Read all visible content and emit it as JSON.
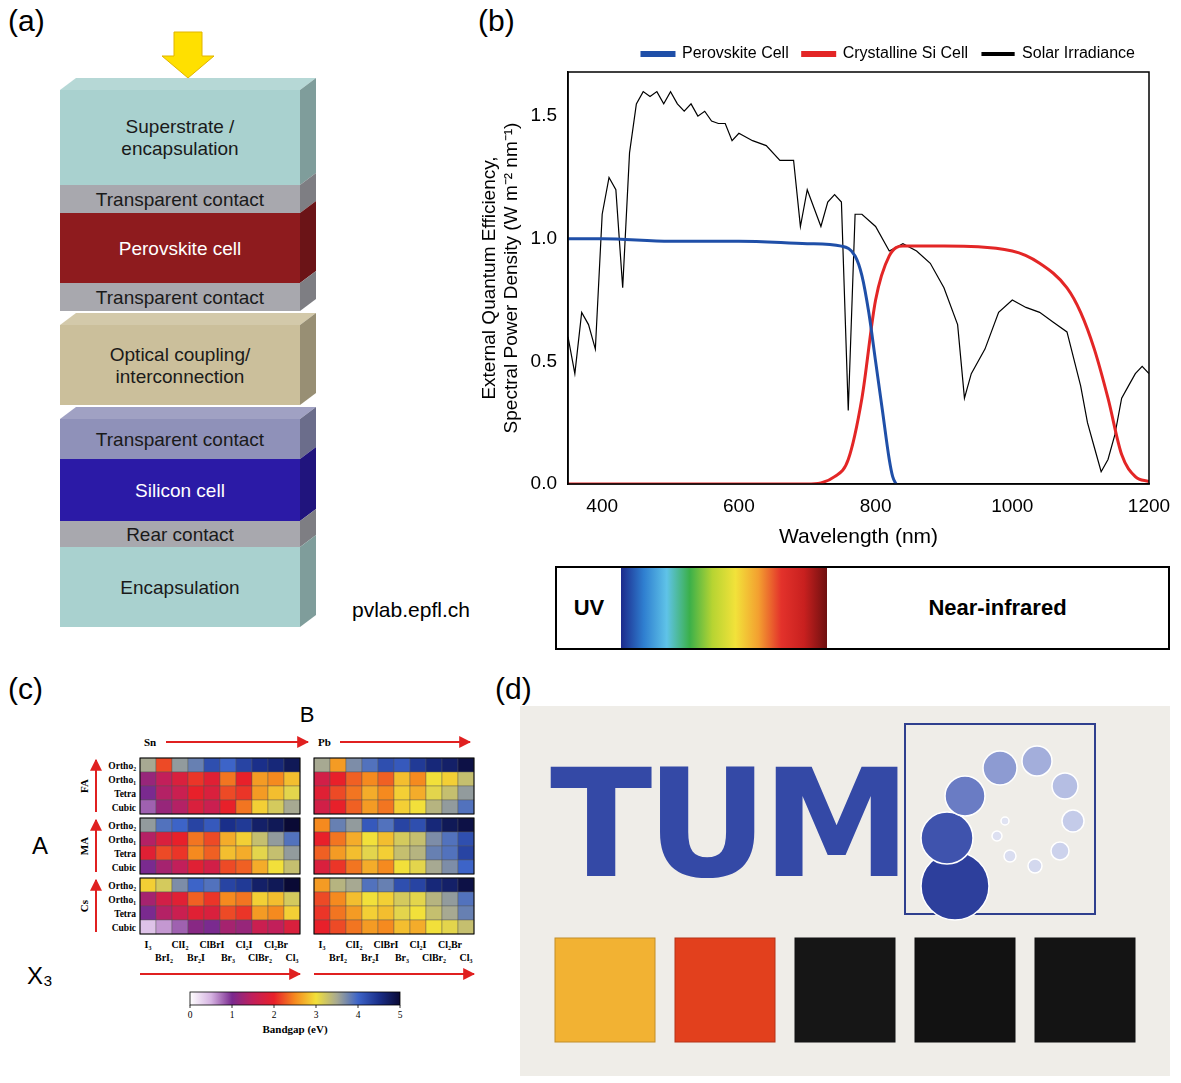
{
  "panel_a": {
    "label": "(a)",
    "stacks": [
      [
        {
          "label": "Superstrate / encapsulation",
          "color": "#a9d1cf"
        },
        {
          "label": "Transparent contact",
          "color": "#a8a8ae"
        },
        {
          "label": "Perovskite cell",
          "color": "#8e1b1e"
        },
        {
          "label": "Transparent contact",
          "color": "#a8a8ae"
        }
      ],
      [
        {
          "label": "Optical coupling/ interconnection",
          "color": "#cbbf9b"
        }
      ],
      [
        {
          "label": "Transparent contact",
          "color": "#8f91b9"
        },
        {
          "label": "Silicon cell",
          "color": "#2b1aa6"
        },
        {
          "label": "Rear contact",
          "color": "#a8a8ae"
        },
        {
          "label": "Encapsulation",
          "color": "#a9d1cf"
        }
      ]
    ]
  },
  "chart_data": {
    "type": "line",
    "panel_label": "(b)",
    "x_label": "Wavelength (nm)",
    "y_label": [
      "External Quantum Efficiency,",
      "Spectral Power Density (W m⁻² nm⁻¹)"
    ],
    "xlim": [
      350,
      1200
    ],
    "xticks": [
      400,
      600,
      800,
      1000,
      1200
    ],
    "ylim": [
      0,
      1.68
    ],
    "yticks": [
      {
        "value": 0,
        "label": "0.0"
      },
      {
        "value": 0.5,
        "label": "0.5"
      },
      {
        "value": 1,
        "label": "1.0"
      },
      {
        "value": 1.5,
        "label": "1.5"
      }
    ],
    "grid": false,
    "legend": "top",
    "series": [
      {
        "name": "Perovskite Cell",
        "color": "#1f4fa8",
        "x": [
          350,
          400,
          500,
          600,
          700,
          750,
          770,
          780,
          790,
          800,
          810,
          820,
          825,
          830
        ],
        "values": [
          1.0,
          1.0,
          0.99,
          0.99,
          0.98,
          0.97,
          0.93,
          0.85,
          0.7,
          0.5,
          0.3,
          0.1,
          0.03,
          0.0
        ]
      },
      {
        "name": "Crystalline Si Cell",
        "color": "#e32626",
        "x": [
          350,
          700,
          740,
          760,
          780,
          800,
          820,
          840,
          900,
          1000,
          1040,
          1080,
          1100,
          1120,
          1140,
          1160,
          1180,
          1200
        ],
        "values": [
          0,
          0,
          0.03,
          0.1,
          0.35,
          0.75,
          0.93,
          0.97,
          0.97,
          0.95,
          0.9,
          0.8,
          0.7,
          0.55,
          0.35,
          0.12,
          0.03,
          0.01
        ]
      },
      {
        "name": "Solar Irradiance",
        "color": "#000000",
        "x": [
          350,
          360,
          370,
          380,
          390,
          400,
          410,
          420,
          430,
          440,
          450,
          460,
          470,
          480,
          490,
          500,
          510,
          520,
          530,
          540,
          550,
          560,
          570,
          580,
          590,
          600,
          620,
          640,
          660,
          680,
          690,
          700,
          720,
          730,
          740,
          750,
          760,
          770,
          780,
          800,
          820,
          840,
          860,
          880,
          900,
          920,
          930,
          940,
          960,
          980,
          1000,
          1020,
          1040,
          1060,
          1080,
          1100,
          1110,
          1120,
          1130,
          1140,
          1150,
          1160,
          1170,
          1180,
          1190,
          1200
        ],
        "values": [
          0.6,
          0.45,
          0.7,
          0.65,
          0.55,
          1.1,
          1.25,
          1.2,
          0.8,
          1.35,
          1.55,
          1.6,
          1.58,
          1.6,
          1.55,
          1.6,
          1.55,
          1.52,
          1.55,
          1.5,
          1.52,
          1.48,
          1.47,
          1.47,
          1.4,
          1.43,
          1.4,
          1.38,
          1.32,
          1.32,
          1.05,
          1.2,
          1.05,
          1.15,
          1.18,
          1.15,
          0.3,
          1.1,
          1.1,
          1.05,
          0.95,
          0.98,
          0.95,
          0.9,
          0.8,
          0.65,
          0.35,
          0.45,
          0.55,
          0.7,
          0.75,
          0.72,
          0.7,
          0.66,
          0.62,
          0.4,
          0.25,
          0.15,
          0.05,
          0.1,
          0.2,
          0.35,
          0.4,
          0.45,
          0.48,
          0.45
        ]
      }
    ]
  },
  "panel_b_extras": {
    "credit": "pvlab.epfl.ch",
    "spectrum_bar": [
      "UV",
      "Near-infrared"
    ]
  },
  "panel_c": {
    "type": "heatmap",
    "label": "(c)",
    "top_label": "B",
    "b_labels": [
      "Sn",
      "Pb"
    ],
    "a_label": "A",
    "groups": [
      "FA",
      "MA",
      "Cs"
    ],
    "rows": [
      "Ortho₂",
      "Ortho₁",
      "Tetra",
      "Cubic"
    ],
    "x_label": "X₃",
    "columns": [
      "I₃",
      "BrI₂",
      "ClI₂",
      "Br₂I",
      "ClBrI",
      "Br₃",
      "Cl₂I",
      "ClBr₂",
      "Cl₂Br",
      "Cl₃"
    ],
    "cells": [
      [
        [
          3.5,
          2.2,
          3.6,
          3.8,
          4.2,
          4.0,
          4.3,
          4.5,
          4.6,
          4.8
        ],
        [
          1.2,
          1.5,
          1.8,
          2.1,
          1.9,
          2.4,
          2.0,
          2.6,
          2.5,
          2.8
        ],
        [
          1.0,
          1.4,
          1.6,
          2.0,
          1.8,
          2.2,
          2.1,
          2.6,
          2.8,
          3.1
        ],
        [
          0.8,
          1.2,
          1.4,
          1.8,
          1.6,
          2.0,
          2.4,
          2.9,
          3.2,
          3.5
        ],
        [
          3.6,
          3.9,
          4.0,
          4.3,
          4.1,
          4.5,
          4.4,
          4.7,
          4.8,
          5.0
        ],
        [
          1.4,
          1.8,
          2.0,
          2.4,
          2.2,
          2.7,
          2.9,
          3.3,
          3.6,
          3.9
        ],
        [
          1.9,
          2.2,
          2.1,
          2.5,
          2.3,
          2.8,
          2.7,
          3.1,
          3.3,
          3.6
        ],
        [
          1.0,
          1.3,
          1.5,
          1.9,
          1.7,
          2.2,
          2.3,
          2.7,
          3.0,
          3.3
        ],
        [
          2.9,
          3.2,
          3.7,
          4.0,
          3.9,
          4.3,
          4.4,
          4.7,
          4.8,
          5.0
        ],
        [
          1.3,
          1.7,
          1.9,
          2.3,
          2.1,
          2.5,
          2.4,
          2.9,
          2.8,
          3.2
        ],
        [
          1.0,
          1.4,
          1.6,
          1.9,
          1.8,
          2.2,
          2.1,
          2.6,
          2.5,
          2.9
        ],
        [
          0.4,
          0.6,
          0.8,
          1.1,
          1.0,
          1.3,
          1.2,
          1.6,
          1.5,
          1.8
        ]
      ],
      [
        [
          3.5,
          2.6,
          3.7,
          3.9,
          4.2,
          4.1,
          4.4,
          4.6,
          4.7,
          4.9
        ],
        [
          1.7,
          2.0,
          2.3,
          2.5,
          2.3,
          2.8,
          2.5,
          3.0,
          2.9,
          3.3
        ],
        [
          1.9,
          2.2,
          2.4,
          2.7,
          2.5,
          2.9,
          2.7,
          3.1,
          3.3,
          3.6
        ],
        [
          1.7,
          2.0,
          2.3,
          2.6,
          2.4,
          2.9,
          3.0,
          3.4,
          3.6,
          3.9
        ],
        [
          2.5,
          3.8,
          3.6,
          4.1,
          3.9,
          4.3,
          4.2,
          4.6,
          4.8,
          4.9
        ],
        [
          2.0,
          2.4,
          2.7,
          3.0,
          2.8,
          3.2,
          3.3,
          3.7,
          3.9,
          4.2
        ],
        [
          2.3,
          2.6,
          2.8,
          3.1,
          2.9,
          3.3,
          3.4,
          3.8,
          3.9,
          4.3
        ],
        [
          1.8,
          2.1,
          2.4,
          2.7,
          2.5,
          3.0,
          3.1,
          3.5,
          3.7,
          4.0
        ],
        [
          2.6,
          3.4,
          3.5,
          3.9,
          3.8,
          4.2,
          4.3,
          4.6,
          4.7,
          4.9
        ],
        [
          2.2,
          2.5,
          2.8,
          3.0,
          2.9,
          3.2,
          3.1,
          3.4,
          3.6,
          3.9
        ],
        [
          2.1,
          2.4,
          2.6,
          2.9,
          2.8,
          3.1,
          3.0,
          3.3,
          3.5,
          3.8
        ],
        [
          2.0,
          2.2,
          2.4,
          2.6,
          2.5,
          2.8,
          2.7,
          3.0,
          3.1,
          3.3
        ]
      ]
    ],
    "colorbar": {
      "label": "Bandgap (eV)",
      "range": [
        0,
        5
      ],
      "ticks": [
        0,
        1,
        2,
        3,
        4,
        5
      ]
    }
  },
  "panel_d": {
    "label": "(d)",
    "logo_text": "TUM",
    "sample_colors": [
      "#f2b233",
      "#e2401d",
      "#161616",
      "#121212",
      "#141414"
    ]
  }
}
